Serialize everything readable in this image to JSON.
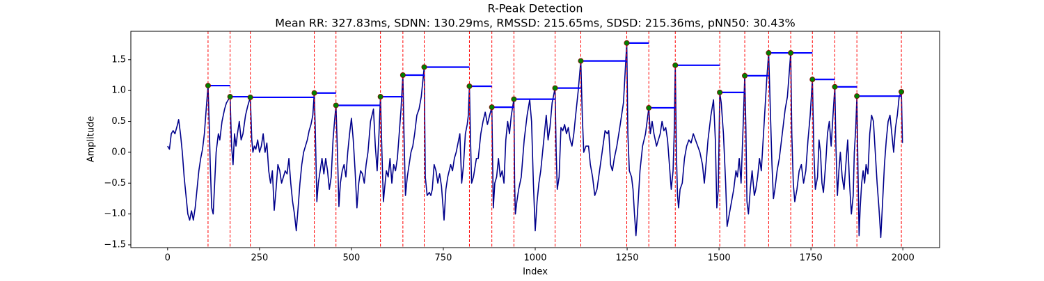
{
  "chart_data": {
    "type": "line",
    "title": "R-Peak Detection",
    "subtitle": "Mean RR: 327.83ms, SDNN: 130.29ms, RMSSD: 215.65ms, SDSD: 215.36ms, pNN50: 30.43%",
    "x_label": "Index",
    "y_label": "Amplitude",
    "xlim": [
      -100,
      2100
    ],
    "ylim": [
      -1.545,
      1.96
    ],
    "xticks": [
      0,
      250,
      500,
      750,
      1000,
      1250,
      1500,
      1750,
      2000
    ],
    "yticks": [
      {
        "value": -1.5,
        "label": "−1.5"
      },
      {
        "value": -1.0,
        "label": "−1.0"
      },
      {
        "value": -0.5,
        "label": "−0.5"
      },
      {
        "value": 0,
        "label": "0.0"
      },
      0.5,
      {
        "value": 1.0,
        "label": "1.0"
      },
      1.5
    ],
    "grid": false,
    "peak_lines": {
      "color": "red",
      "dashed": true
    },
    "rr_lines": {
      "color": "blue"
    },
    "series": [
      {
        "style": "line",
        "color": "#00008b",
        "x": [
          0,
          5,
          10,
          15,
          20,
          27,
          30,
          35,
          40,
          45,
          50,
          55,
          60,
          65,
          70,
          75,
          80,
          85,
          90,
          95,
          100,
          105,
          110,
          113,
          116,
          120,
          124,
          128,
          132,
          138,
          142,
          148,
          155,
          160,
          165,
          170,
          174,
          178,
          182,
          186,
          190,
          195,
          200,
          205,
          212,
          218,
          225,
          229,
          232,
          236,
          240,
          245,
          250,
          255,
          260,
          265,
          270,
          275,
          280,
          285,
          290,
          295,
          300,
          305,
          310,
          315,
          320,
          325,
          330,
          335,
          340,
          345,
          350,
          355,
          360,
          365,
          370,
          375,
          380,
          385,
          390,
          395,
          399,
          402,
          406,
          410,
          415,
          420,
          425,
          430,
          435,
          440,
          445,
          450,
          454,
          458,
          462,
          466,
          470,
          475,
          480,
          485,
          490,
          495,
          500,
          505,
          510,
          515,
          520,
          525,
          530,
          535,
          540,
          545,
          552,
          560,
          565,
          570,
          575,
          579,
          583,
          587,
          590,
          595,
          600,
          605,
          610,
          615,
          620,
          625,
          630,
          635,
          640,
          643,
          647,
          652,
          657,
          662,
          667,
          672,
          678,
          684,
          690,
          698,
          701,
          706,
          712,
          716,
          720,
          725,
          730,
          735,
          740,
          745,
          752,
          757,
          762,
          770,
          775,
          780,
          785,
          790,
          795,
          800,
          805,
          810,
          815,
          818,
          821,
          824,
          827,
          832,
          840,
          845,
          852,
          858,
          864,
          870,
          876,
          882,
          886,
          890,
          895,
          900,
          905,
          910,
          915,
          920,
          925,
          930,
          935,
          942,
          944,
          946,
          950,
          955,
          962,
          970,
          978,
          985,
          990,
          995,
          1000,
          1005,
          1010,
          1015,
          1020,
          1025,
          1030,
          1035,
          1040,
          1046,
          1054,
          1057,
          1060,
          1065,
          1070,
          1075,
          1080,
          1085,
          1090,
          1095,
          1100,
          1105,
          1110,
          1117,
          1124,
          1128,
          1132,
          1138,
          1145,
          1150,
          1156,
          1162,
          1168,
          1175,
          1182,
          1190,
          1196,
          1200,
          1205,
          1210,
          1215,
          1222,
          1230,
          1240,
          1249,
          1252,
          1256,
          1262,
          1266,
          1270,
          1274,
          1278,
          1285,
          1292,
          1300,
          1309,
          1313,
          1318,
          1323,
          1330,
          1335,
          1340,
          1345,
          1350,
          1355,
          1360,
          1365,
          1370,
          1375,
          1378,
          1381,
          1384,
          1387,
          1390,
          1394,
          1400,
          1406,
          1412,
          1418,
          1424,
          1430,
          1436,
          1442,
          1448,
          1455,
          1460,
          1466,
          1470,
          1478,
          1485,
          1490,
          1494,
          1498,
          1502,
          1506,
          1512,
          1518,
          1522,
          1528,
          1534,
          1540,
          1546,
          1550,
          1555,
          1560,
          1563,
          1566,
          1570,
          1573,
          1576,
          1580,
          1585,
          1590,
          1596,
          1600,
          1605,
          1610,
          1615,
          1620,
          1625,
          1630,
          1635,
          1640,
          1644,
          1648,
          1652,
          1658,
          1664,
          1672,
          1680,
          1686,
          1695,
          1698,
          1702,
          1706,
          1712,
          1718,
          1724,
          1730,
          1736,
          1742,
          1748,
          1754,
          1758,
          1762,
          1768,
          1772,
          1776,
          1780,
          1784,
          1790,
          1795,
          1800,
          1805,
          1810,
          1815,
          1818,
          1822,
          1826,
          1830,
          1835,
          1840,
          1845,
          1850,
          1855,
          1860,
          1865,
          1868,
          1872,
          1875,
          1878,
          1881,
          1884,
          1888,
          1892,
          1896,
          1900,
          1905,
          1910,
          1915,
          1920,
          1925,
          1930,
          1935,
          1940,
          1945,
          1950,
          1955,
          1960,
          1965,
          1970,
          1975,
          1980,
          1985,
          1990,
          1996,
          1999
        ],
        "values": [
          0.1,
          0.05,
          0.3,
          0.35,
          0.3,
          0.45,
          0.53,
          0.3,
          0,
          -0.4,
          -0.7,
          -1.0,
          -1.1,
          -0.95,
          -1.1,
          -0.9,
          -0.6,
          -0.3,
          -0.1,
          0.05,
          0.3,
          0.7,
          1.08,
          0.5,
          -0.2,
          -0.9,
          -1.0,
          -0.5,
          0,
          0.3,
          0.2,
          0.5,
          0.7,
          0.8,
          0.85,
          0.9,
          0.1,
          -0.2,
          0.3,
          0.1,
          0.3,
          0.5,
          0.2,
          0.3,
          0.6,
          0.75,
          0.89,
          0.2,
          0,
          0.1,
          0.05,
          0.2,
          0,
          0.1,
          0.3,
          0,
          0.15,
          -0.3,
          -0.5,
          -0.3,
          -0.94,
          -0.6,
          -0.2,
          -0.3,
          -0.5,
          -0.4,
          -0.3,
          -0.35,
          -0.1,
          -0.5,
          -0.8,
          -1.0,
          -1.27,
          -0.9,
          -0.5,
          -0.2,
          0,
          0.1,
          0.2,
          0.35,
          0.45,
          0.6,
          0.96,
          0.3,
          -0.8,
          -0.5,
          -0.3,
          -0.1,
          -0.35,
          -0.1,
          -0.3,
          -0.6,
          -0.4,
          0.2,
          0.5,
          0.76,
          0,
          -0.88,
          -0.5,
          -0.3,
          -0.2,
          -0.4,
          0,
          0.3,
          0.55,
          0.2,
          -0.3,
          -0.9,
          -0.5,
          -0.3,
          -0.35,
          -0.5,
          -0.2,
          0,
          0.5,
          0.7,
          0.1,
          -0.3,
          0.3,
          0.9,
          0,
          -0.8,
          -0.6,
          -0.3,
          -0.4,
          -0.1,
          -0.5,
          -0.2,
          -0.3,
          -0.1,
          0.3,
          0.7,
          1.25,
          0.3,
          -0.7,
          -0.4,
          -0.2,
          0,
          0.1,
          0.3,
          0.6,
          0.7,
          0.9,
          1.38,
          -0.4,
          -0.7,
          -0.65,
          -0.7,
          -0.6,
          -0.2,
          -0.3,
          -0.5,
          -0.35,
          -0.55,
          -1.1,
          -0.6,
          -0.4,
          -0.2,
          -0.3,
          -0.1,
          0,
          0.15,
          0.3,
          -0.5,
          -0.2,
          0.3,
          0.45,
          0.6,
          1.07,
          0.2,
          -0.5,
          -0.4,
          -0.1,
          -0.1,
          0.3,
          0.5,
          0.65,
          0.45,
          0.6,
          0.73,
          -0.9,
          -0.5,
          -0.4,
          -0.1,
          -0.4,
          -0.3,
          -0.5,
          0.2,
          0.5,
          0.3,
          0.6,
          0.86,
          -0.5,
          -1.0,
          -0.8,
          -0.6,
          -0.4,
          0.2,
          0.6,
          0.85,
          0.5,
          -0.5,
          -1.27,
          -0.8,
          -0.5,
          -0.3,
          0,
          0.3,
          0.6,
          0.2,
          0.4,
          0.8,
          1.04,
          0,
          -0.6,
          -0.4,
          0.4,
          0.35,
          0.45,
          0.3,
          0.4,
          0.2,
          0.1,
          0.3,
          0.6,
          1.0,
          1.48,
          0.6,
          0,
          0.1,
          0.1,
          -0.2,
          -0.4,
          -0.7,
          -0.6,
          -0.3,
          0,
          0.35,
          0.3,
          0.35,
          -0.2,
          -0.3,
          -0.1,
          0.1,
          0.4,
          0.8,
          1.77,
          0.3,
          -0.3,
          -0.4,
          -0.6,
          -1.0,
          -1.35,
          -1.0,
          -0.3,
          0.1,
          0.3,
          0.72,
          0.3,
          0.5,
          0.3,
          0.1,
          0.2,
          0.3,
          0.5,
          0.35,
          0.4,
          0.2,
          -0.2,
          -0.6,
          -0.3,
          0.3,
          1.41,
          0,
          -0.7,
          -0.9,
          -0.6,
          -0.5,
          -0.1,
          0.1,
          0.2,
          0.15,
          0.3,
          0.2,
          0.1,
          0,
          -0.2,
          -0.5,
          -0.1,
          0.2,
          0.6,
          0.85,
          0.2,
          -0.9,
          -0.6,
          0.97,
          0.8,
          0.3,
          -0.5,
          -1.2,
          -1.0,
          -0.8,
          -0.6,
          -0.3,
          -0.4,
          -0.1,
          -0.5,
          0,
          0.5,
          1.24,
          0.4,
          -0.8,
          -1.0,
          -0.6,
          -0.3,
          -0.7,
          -0.6,
          -0.4,
          -0.1,
          -0.3,
          0.2,
          0.7,
          1.2,
          1.61,
          0.6,
          -0.2,
          -0.75,
          -0.6,
          -0.3,
          -0.1,
          0.3,
          0.7,
          0.9,
          1.61,
          0.3,
          -0.5,
          -0.8,
          -0.6,
          -0.3,
          -0.2,
          -0.5,
          -0.3,
          0.2,
          0.6,
          1.18,
          0,
          -0.6,
          -0.4,
          0.2,
          0,
          -0.5,
          -0.65,
          -0.2,
          0.3,
          0.5,
          0.1,
          0.6,
          1.06,
          0.1,
          -0.7,
          -0.3,
          0,
          -0.4,
          -0.6,
          -0.2,
          0.2,
          -0.5,
          -1.0,
          -0.7,
          0,
          0.4,
          0.91,
          -0.3,
          -1.35,
          -0.9,
          -0.5,
          -0.3,
          -0.5,
          -0.2,
          -0.35,
          0.3,
          0.6,
          0.5,
          0,
          -0.5,
          -0.9,
          -1.38,
          -0.8,
          -0.2,
          0.2,
          0.5,
          0.6,
          0.3,
          0,
          0.4,
          0.6,
          0.9,
          0.98,
          0.15
        ]
      },
      {
        "style": "points",
        "color": "green",
        "edge_color": "#8b0000",
        "x": [
          110,
          170,
          225,
          399,
          458,
          579,
          640,
          698,
          821,
          882,
          942,
          1054,
          1124,
          1249,
          1309,
          1381,
          1502,
          1570,
          1635,
          1695,
          1754,
          1815,
          1875,
          1996
        ],
        "values": [
          1.08,
          0.9,
          0.89,
          0.96,
          0.76,
          0.9,
          1.25,
          1.38,
          1.07,
          0.73,
          0.86,
          1.04,
          1.48,
          1.77,
          0.72,
          1.41,
          0.97,
          1.24,
          1.61,
          1.61,
          1.18,
          1.06,
          0.91,
          0.98
        ]
      }
    ]
  }
}
